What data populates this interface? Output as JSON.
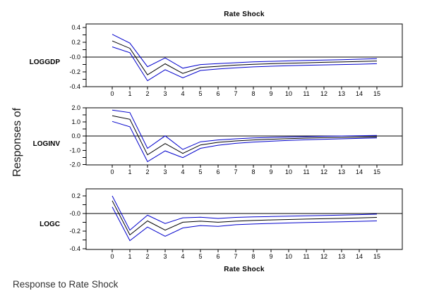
{
  "chart_data": {
    "type": "line",
    "title_top": "Rate Shock",
    "xlabel_bottom": "Rate Shock",
    "ylabel_outer": "Responses of",
    "caption": "Response to Rate Shock",
    "x": [
      0,
      1,
      2,
      3,
      4,
      5,
      6,
      7,
      8,
      9,
      10,
      11,
      12,
      13,
      14,
      15
    ],
    "x_labels": [
      "0",
      "1",
      "2",
      "3",
      "4",
      "5",
      "6",
      "7",
      "8",
      "9",
      "10",
      "11",
      "12",
      "13",
      "14",
      "15"
    ],
    "line_colors": {
      "center": "#000000",
      "band": "#0000cc"
    },
    "legend": "none",
    "grid": false,
    "panels": [
      {
        "label": "LOGGDP",
        "ylim": [
          -0.4,
          0.45
        ],
        "yticks_minor": [
          0.4,
          0.3,
          0.2,
          0.1,
          0.0,
          -0.1,
          -0.2,
          -0.3,
          -0.4
        ],
        "yticks_labeled": [
          [
            0.4,
            "0.4"
          ],
          [
            0.2,
            "0.2"
          ],
          [
            0.0,
            "-0.0"
          ],
          [
            -0.2,
            "-0.2"
          ],
          [
            -0.4,
            "-0.4"
          ]
        ],
        "series": [
          {
            "name": "upper",
            "values": [
              0.31,
              0.19,
              -0.13,
              -0.01,
              -0.15,
              -0.1,
              -0.088,
              -0.075,
              -0.064,
              -0.057,
              -0.05,
              -0.045,
              -0.04,
              -0.034,
              -0.028,
              -0.021
            ]
          },
          {
            "name": "center",
            "values": [
              0.22,
              0.12,
              -0.24,
              -0.09,
              -0.22,
              -0.14,
              -0.124,
              -0.108,
              -0.097,
              -0.089,
              -0.082,
              -0.076,
              -0.07,
              -0.065,
              -0.059,
              -0.052
            ]
          },
          {
            "name": "lower",
            "values": [
              0.14,
              0.06,
              -0.32,
              -0.17,
              -0.28,
              -0.18,
              -0.16,
              -0.144,
              -0.132,
              -0.123,
              -0.116,
              -0.11,
              -0.105,
              -0.1,
              -0.095,
              -0.089
            ]
          }
        ]
      },
      {
        "label": "LOGINV",
        "ylim": [
          -2.03,
          2.0
        ],
        "yticks_minor": [
          2.0,
          1.5,
          1.0,
          0.5,
          0.0,
          -0.5,
          -1.0,
          -1.5,
          -2.0
        ],
        "yticks_labeled": [
          [
            2.0,
            "2.0"
          ],
          [
            1.0,
            "1.0"
          ],
          [
            0.0,
            "0.0"
          ],
          [
            -1.0,
            "-1.0"
          ],
          [
            -2.0,
            "-2.0"
          ]
        ],
        "series": [
          {
            "name": "upper",
            "values": [
              1.84,
              1.66,
              -0.86,
              0.02,
              -0.94,
              -0.4,
              -0.27,
              -0.19,
              -0.13,
              -0.09,
              -0.06,
              -0.04,
              -0.01,
              0.01,
              0.03,
              0.05
            ]
          },
          {
            "name": "center",
            "values": [
              1.44,
              1.19,
              -1.32,
              -0.52,
              -1.22,
              -0.62,
              -0.44,
              -0.34,
              -0.27,
              -0.22,
              -0.18,
              -0.14,
              -0.11,
              -0.09,
              -0.07,
              -0.05
            ]
          },
          {
            "name": "lower",
            "values": [
              1.04,
              0.66,
              -1.8,
              -1.04,
              -1.52,
              -0.86,
              -0.64,
              -0.51,
              -0.42,
              -0.36,
              -0.3,
              -0.26,
              -0.22,
              -0.19,
              -0.16,
              -0.13
            ]
          }
        ]
      },
      {
        "label": "LOGC",
        "ylim": [
          -0.41,
          0.28
        ],
        "yticks_minor": [
          0.2,
          0.1,
          0.0,
          -0.1,
          -0.2,
          -0.3,
          -0.4
        ],
        "yticks_labeled": [
          [
            0.2,
            "0.2"
          ],
          [
            0.0,
            "-0.0"
          ],
          [
            -0.2,
            "-0.2"
          ],
          [
            -0.4,
            "-0.4"
          ]
        ],
        "series": [
          {
            "name": "upper",
            "values": [
              0.2,
              -0.19,
              -0.02,
              -0.115,
              -0.05,
              -0.043,
              -0.057,
              -0.045,
              -0.039,
              -0.035,
              -0.031,
              -0.027,
              -0.023,
              -0.019,
              -0.014,
              -0.008
            ]
          },
          {
            "name": "center",
            "values": [
              0.145,
              -0.245,
              -0.085,
              -0.19,
              -0.1,
              -0.088,
              -0.1,
              -0.088,
              -0.08,
              -0.074,
              -0.069,
              -0.064,
              -0.06,
              -0.056,
              -0.051,
              -0.045
            ]
          },
          {
            "name": "lower",
            "values": [
              0.075,
              -0.31,
              -0.155,
              -0.26,
              -0.165,
              -0.138,
              -0.148,
              -0.128,
              -0.12,
              -0.114,
              -0.108,
              -0.103,
              -0.099,
              -0.095,
              -0.09,
              -0.085
            ]
          }
        ]
      }
    ]
  }
}
